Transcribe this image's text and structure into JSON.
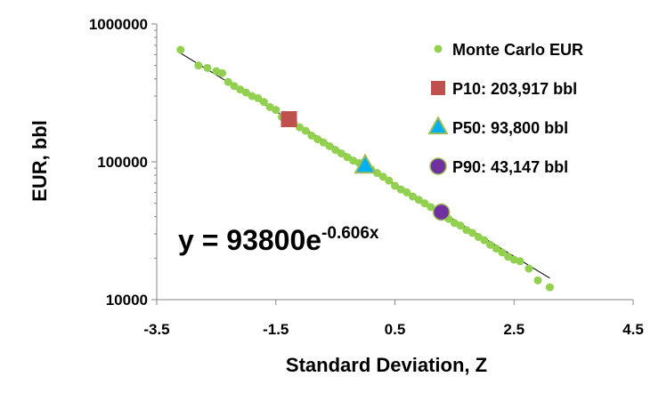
{
  "chart_data": {
    "type": "scatter",
    "xlabel": "Standard Deviation, Z",
    "ylabel": "EUR, bbl",
    "xlim": [
      -3.5,
      4.5
    ],
    "ylim": [
      10000,
      1000000
    ],
    "y_scale": "log",
    "x_ticks": [
      "-3.5",
      "-1.5",
      "0.5",
      "2.5",
      "4.5"
    ],
    "x_tick_values": [
      -3.5,
      -1.5,
      0.5,
      2.5,
      4.5
    ],
    "y_ticks": [
      "10000",
      "100000",
      "1000000"
    ],
    "y_tick_values": [
      10000,
      100000,
      1000000
    ],
    "grid": false,
    "legend_position": "top-right",
    "trendline": {
      "equation_base": "y = 93800e",
      "equation_exponent": "-0.606x",
      "a": 93800,
      "b": -0.606,
      "x_range": [
        -3.1,
        3.1
      ],
      "color": "#000000"
    },
    "series": [
      {
        "name": "Monte Carlo EUR",
        "marker": "circle",
        "color": "#92D050",
        "x": [
          -3.1,
          -2.8,
          -2.65,
          -2.5,
          -2.4,
          -2.3,
          -2.2,
          -2.1,
          -2.0,
          -1.9,
          -1.8,
          -1.7,
          -1.6,
          -1.5,
          -1.4,
          -1.3,
          -1.2,
          -1.1,
          -1.0,
          -0.9,
          -0.8,
          -0.7,
          -0.6,
          -0.5,
          -0.4,
          -0.3,
          -0.2,
          -0.1,
          0.0,
          0.1,
          0.2,
          0.3,
          0.4,
          0.5,
          0.6,
          0.7,
          0.8,
          0.9,
          1.0,
          1.1,
          1.2,
          1.3,
          1.4,
          1.5,
          1.6,
          1.7,
          1.8,
          1.9,
          2.0,
          2.1,
          2.2,
          2.3,
          2.4,
          2.5,
          2.6,
          2.75,
          2.9,
          3.1
        ],
        "y": [
          650000,
          500000,
          480000,
          455000,
          440000,
          380000,
          355000,
          335000,
          318000,
          300000,
          290000,
          272000,
          250000,
          238000,
          212000,
          200000,
          190000,
          178000,
          168000,
          155000,
          146000,
          138000,
          130000,
          122000,
          115000,
          108000,
          102000,
          98000,
          93800,
          88000,
          83000,
          78000,
          73000,
          67000,
          63000,
          60000,
          56000,
          53000,
          50000,
          47000,
          43000,
          41000,
          38500,
          36000,
          34500,
          32000,
          30500,
          28500,
          27000,
          25000,
          23500,
          22000,
          20500,
          19500,
          19000,
          16800,
          13800,
          12300
        ]
      },
      {
        "name": "P10: 203,917 bbl",
        "marker": "square",
        "color": "#C0504D",
        "x": [
          -1.28
        ],
        "y": [
          203917
        ]
      },
      {
        "name": "P50: 93,800 bbl",
        "marker": "triangle",
        "color": "#00B0F0",
        "edge_color": "#9BBB59",
        "x": [
          0.0
        ],
        "y": [
          93800
        ]
      },
      {
        "name": "P90: 43,147 bbl",
        "marker": "circle-large",
        "color": "#7030A0",
        "edge_color": "#9BBB59",
        "x": [
          1.28
        ],
        "y": [
          43147
        ]
      }
    ]
  }
}
